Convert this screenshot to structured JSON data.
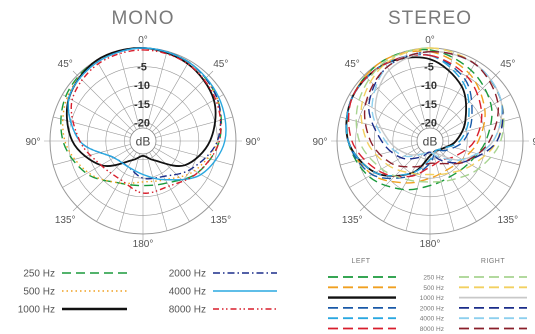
{
  "chart_data": [
    {
      "type": "polar",
      "title": "MONO",
      "angle_labels": [
        "0°",
        "45°",
        "90°",
        "135°",
        "180°",
        "135°",
        "90°",
        "45°"
      ],
      "radial_labels": [
        "-5",
        "-10",
        "-15",
        "-20"
      ],
      "center_label": "dB",
      "rlim": [
        -25,
        0
      ],
      "grid": true,
      "legend": "bottom",
      "series": [
        {
          "name": "250 Hz",
          "color": "#1a9a3c",
          "style": "dashed",
          "angles": [
            0,
            30,
            60,
            90,
            120,
            150,
            180,
            210,
            240,
            270,
            300,
            330
          ],
          "values": [
            0,
            -0.5,
            -2,
            -4.5,
            -8,
            -12,
            -13,
            -12,
            -7.5,
            -3.5,
            -1,
            0
          ]
        },
        {
          "name": "500 Hz",
          "color": "#f0a020",
          "style": "dotted",
          "angles": [
            0,
            30,
            60,
            90,
            120,
            150,
            180,
            210,
            240,
            270,
            300,
            330
          ],
          "values": [
            0,
            -0.5,
            -2,
            -5,
            -9,
            -13,
            -14,
            -12,
            -8,
            -4,
            -1.5,
            0
          ]
        },
        {
          "name": "1000 Hz",
          "color": "#111111",
          "style": "solid",
          "angles": [
            0,
            30,
            60,
            90,
            120,
            150,
            180,
            210,
            240,
            270,
            300,
            330
          ],
          "values": [
            0,
            -1,
            -3,
            -7,
            -12,
            -19,
            -21,
            -19,
            -12,
            -6,
            -2,
            0
          ]
        },
        {
          "name": "2000 Hz",
          "color": "#1a2d8a",
          "style": "dashdot",
          "angles": [
            0,
            30,
            60,
            90,
            120,
            150,
            180,
            210,
            240,
            270,
            300,
            330
          ],
          "values": [
            0,
            -0.5,
            -2,
            -5,
            -10,
            -14,
            -15,
            -17,
            -16,
            -8,
            -2,
            -0.5
          ]
        },
        {
          "name": "4000 Hz",
          "color": "#2aa8e0",
          "style": "solid",
          "angles": [
            0,
            30,
            60,
            90,
            120,
            150,
            180,
            210,
            240,
            270,
            300,
            330
          ],
          "values": [
            0,
            -0.5,
            -1.5,
            -3,
            -7,
            -13,
            -16,
            -17,
            -16,
            -8,
            -2,
            -0.5
          ]
        },
        {
          "name": "8000 Hz",
          "color": "#d81e2c",
          "style": "dashdotdot",
          "angles": [
            0,
            30,
            60,
            90,
            120,
            150,
            180,
            210,
            240,
            270,
            300,
            330
          ],
          "values": [
            -0.5,
            -1,
            -2.5,
            -4.5,
            -8,
            -11,
            -11,
            -13,
            -12,
            -8,
            -3,
            -1
          ]
        }
      ]
    },
    {
      "type": "polar",
      "title": "STEREO",
      "angle_labels": [
        "0°",
        "45°",
        "90°",
        "135°",
        "180°",
        "135°",
        "90°",
        "45°"
      ],
      "radial_labels": [
        "-5",
        "-10",
        "-15",
        "-20"
      ],
      "center_label": "dB",
      "rlim": [
        -25,
        0
      ],
      "grid": true,
      "legend": "bottom",
      "legend_headers": [
        "LEFT",
        "RIGHT"
      ],
      "series": [
        {
          "name": "250 Hz LEFT",
          "color": "#1a9a3c",
          "style": "dashed",
          "angles": [
            0,
            30,
            60,
            90,
            120,
            150,
            180,
            210,
            240,
            270,
            300,
            330
          ],
          "values": [
            -0.5,
            -3,
            -6,
            -10,
            -13,
            -14,
            -13,
            -10,
            -6,
            -3,
            -1,
            0
          ]
        },
        {
          "name": "500 Hz LEFT",
          "color": "#f0a020",
          "style": "dashed",
          "angles": [
            0,
            30,
            60,
            90,
            120,
            150,
            180,
            210,
            240,
            270,
            300,
            330
          ],
          "values": [
            -1,
            -4,
            -8,
            -12,
            -15,
            -16,
            -15,
            -12,
            -7,
            -3,
            -1,
            0
          ]
        },
        {
          "name": "1000 Hz LEFT",
          "color": "#111111",
          "style": "solid",
          "angles": [
            0,
            30,
            60,
            90,
            120,
            150,
            180,
            210,
            240,
            270,
            300,
            330
          ],
          "values": [
            -3,
            -8,
            -14,
            -18,
            -21,
            -22,
            -21,
            -15,
            -8,
            -3,
            -1,
            -1
          ]
        },
        {
          "name": "2000 Hz LEFT",
          "color": "#1a5aa8",
          "style": "dashed",
          "angles": [
            0,
            30,
            60,
            90,
            120,
            150,
            180,
            210,
            240,
            270,
            300,
            330
          ],
          "values": [
            -2,
            -6,
            -12,
            -16,
            -20,
            -22,
            -19,
            -14,
            -7,
            -3,
            -1,
            -1
          ]
        },
        {
          "name": "4000 Hz LEFT",
          "color": "#2aa8e0",
          "style": "dashed",
          "angles": [
            0,
            30,
            60,
            90,
            120,
            150,
            180,
            210,
            240,
            270,
            300,
            330
          ],
          "values": [
            -2,
            -7,
            -13,
            -17,
            -21,
            -22,
            -20,
            -15,
            -8,
            -3,
            -1,
            -1
          ]
        },
        {
          "name": "8000 Hz LEFT",
          "color": "#d81e2c",
          "style": "dashed",
          "angles": [
            0,
            30,
            60,
            90,
            120,
            150,
            180,
            210,
            240,
            270,
            300,
            330
          ],
          "values": [
            -2,
            -5,
            -9,
            -13,
            -17,
            -19,
            -18,
            -14,
            -9,
            -4,
            -1,
            -1
          ]
        },
        {
          "name": "250 Hz RIGHT",
          "color": "#a8d490",
          "style": "dashed",
          "angles": [
            0,
            30,
            60,
            90,
            120,
            150,
            180,
            210,
            240,
            270,
            300,
            330
          ],
          "values": [
            0,
            -1,
            -3,
            -6,
            -10,
            -13,
            -14,
            -13,
            -10,
            -6,
            -3,
            -0.5
          ]
        },
        {
          "name": "500 Hz RIGHT",
          "color": "#f2d060",
          "style": "dashed",
          "angles": [
            0,
            30,
            60,
            90,
            120,
            150,
            180,
            210,
            240,
            270,
            300,
            330
          ],
          "values": [
            0,
            -1,
            -3,
            -7,
            -12,
            -15,
            -16,
            -15,
            -12,
            -8,
            -4,
            -1
          ]
        },
        {
          "name": "1000 Hz RIGHT",
          "color": "#c8c8c8",
          "style": "solid",
          "angles": [
            0,
            30,
            60,
            90,
            120,
            150,
            180,
            210,
            240,
            270,
            300,
            330
          ],
          "values": [
            -1,
            -1,
            -3,
            -8,
            -15,
            -21,
            -22,
            -21,
            -18,
            -14,
            -8,
            -3
          ]
        },
        {
          "name": "2000 Hz RIGHT",
          "color": "#1a2d8a",
          "style": "dashed",
          "angles": [
            0,
            30,
            60,
            90,
            120,
            150,
            180,
            210,
            240,
            270,
            300,
            330
          ],
          "values": [
            -1,
            -1,
            -3,
            -7,
            -14,
            -19,
            -22,
            -20,
            -16,
            -12,
            -6,
            -2
          ]
        },
        {
          "name": "4000 Hz RIGHT",
          "color": "#8ccfee",
          "style": "dashed",
          "angles": [
            0,
            30,
            60,
            90,
            120,
            150,
            180,
            210,
            240,
            270,
            300,
            330
          ],
          "values": [
            -1,
            -1,
            -3,
            -8,
            -15,
            -20,
            -22,
            -21,
            -17,
            -13,
            -7,
            -2
          ]
        },
        {
          "name": "8000 Hz RIGHT",
          "color": "#8a1f2a",
          "style": "dashed",
          "angles": [
            0,
            30,
            60,
            90,
            120,
            150,
            180,
            210,
            240,
            270,
            300,
            330
          ],
          "values": [
            -1,
            -1,
            -4,
            -9,
            -14,
            -18,
            -19,
            -17,
            -13,
            -9,
            -5,
            -2
          ]
        }
      ]
    }
  ],
  "mono_legend": [
    {
      "label": "250 Hz",
      "color": "#1a9a3c",
      "style": "dashed"
    },
    {
      "label": "500 Hz",
      "color": "#f0a020",
      "style": "dotted"
    },
    {
      "label": "1000 Hz",
      "color": "#111111",
      "style": "solid"
    },
    {
      "label": "2000 Hz",
      "color": "#1a2d8a",
      "style": "dashdot"
    },
    {
      "label": "4000 Hz",
      "color": "#2aa8e0",
      "style": "solid"
    },
    {
      "label": "8000 Hz",
      "color": "#d81e2c",
      "style": "dashdotdot"
    }
  ],
  "stereo_legend": {
    "left_header": "LEFT",
    "right_header": "RIGHT",
    "rows": [
      {
        "label": "250 Hz",
        "left_color": "#1a9a3c",
        "right_color": "#a8d490",
        "right_style": "dashed"
      },
      {
        "label": "500 Hz",
        "left_color": "#f0a020",
        "right_color": "#f2d060",
        "right_style": "dashed"
      },
      {
        "label": "1000 Hz",
        "left_color": "#111111",
        "right_color": "#c8c8c8",
        "right_style": "solid"
      },
      {
        "label": "2000 Hz",
        "left_color": "#1a5aa8",
        "right_color": "#1a2d8a",
        "right_style": "dashed"
      },
      {
        "label": "4000 Hz",
        "left_color": "#2aa8e0",
        "right_color": "#8ccfee",
        "right_style": "dashed"
      },
      {
        "label": "8000 Hz",
        "left_color": "#d81e2c",
        "right_color": "#8a1f2a",
        "right_style": "dashed"
      }
    ]
  }
}
